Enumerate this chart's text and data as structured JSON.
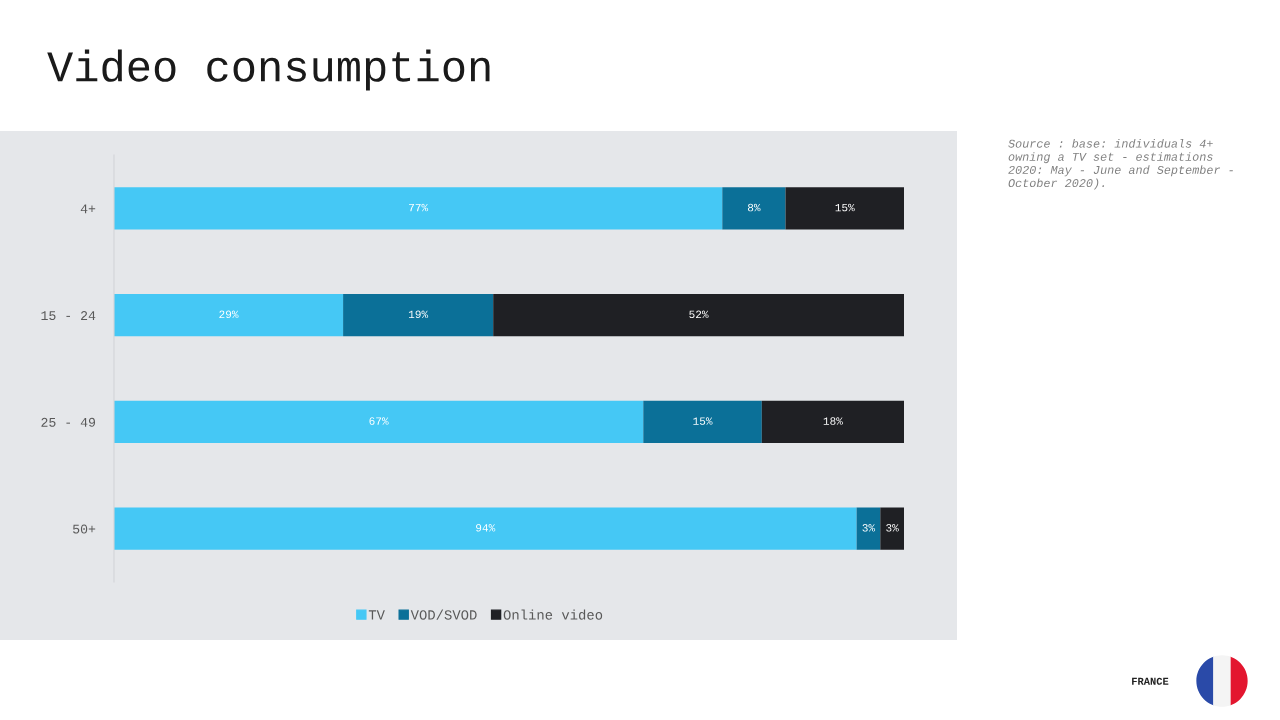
{
  "chart_data": {
    "type": "bar",
    "orientation": "horizontal",
    "stacked": true,
    "title": "Video consumption",
    "categories": [
      "4+",
      "15 - 24",
      "25 - 49",
      "50+"
    ],
    "series": [
      {
        "name": "TV",
        "color": "#45c8f5",
        "values": [
          77,
          29,
          67,
          94
        ],
        "value_labels": [
          "77%",
          "29%",
          "67%",
          "94%"
        ]
      },
      {
        "name": "VOD/SVOD",
        "color": "#0b7098",
        "values": [
          8,
          19,
          15,
          3
        ],
        "value_labels": [
          "8%",
          "19%",
          "15%",
          "3%"
        ]
      },
      {
        "name": "Online video",
        "color": "#1f2024",
        "values": [
          15,
          52,
          18,
          3
        ],
        "value_labels": [
          "15%",
          "52%",
          "18%",
          "3%"
        ]
      }
    ],
    "xlim": [
      0,
      100
    ],
    "tick_labels": "y",
    "grid": false,
    "legend": "bottom",
    "annotations": [
      "Source : base: individuals 4+ owning a TV set - estimations 2020: May - June and September - October 2020).",
      "FRANCE"
    ]
  }
}
